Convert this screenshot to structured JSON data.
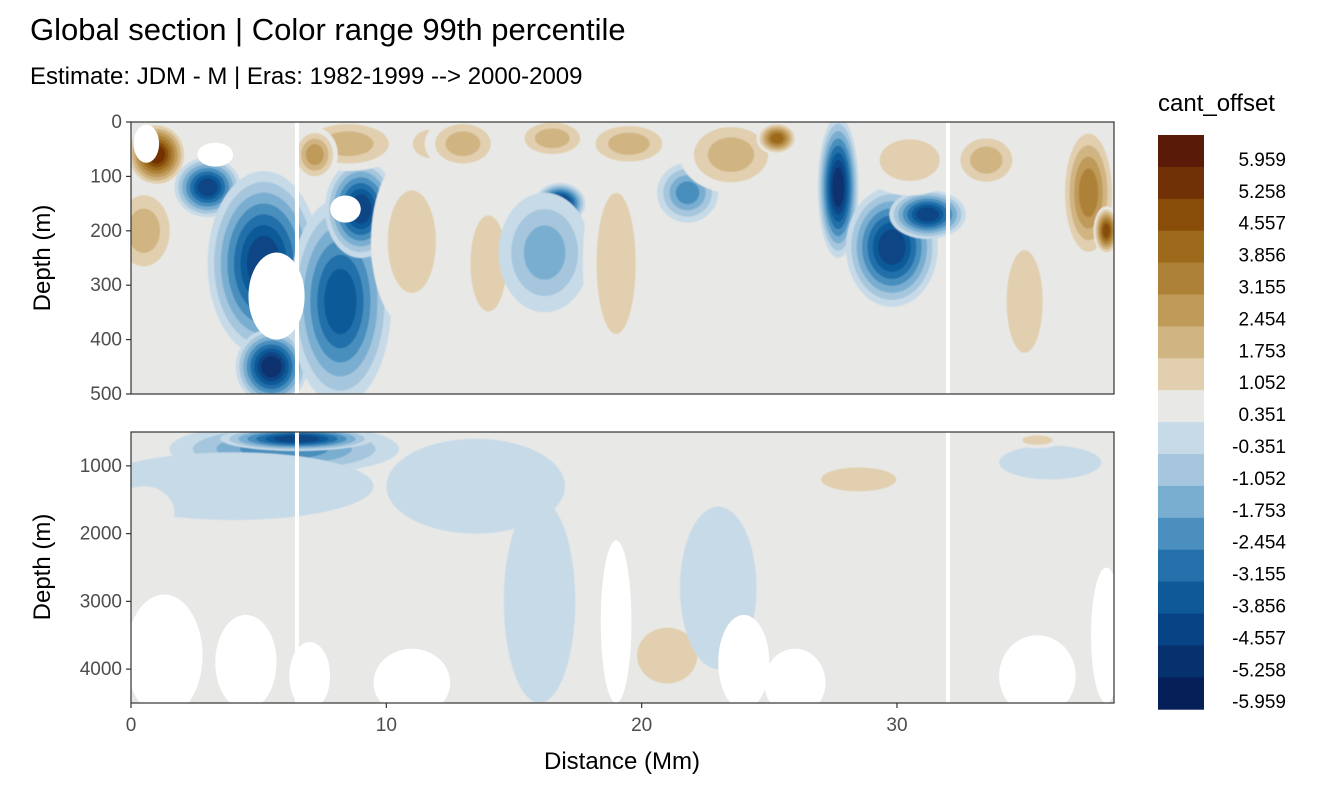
{
  "chart_data": {
    "type": "heatmap",
    "title": "Global section | Color range 99th percentile",
    "subtitle": "Estimate: JDM - M | Eras: 1982-1999 --> 2000-2009",
    "xlabel": "Distance (Mm)",
    "ylabel": "Depth (m)",
    "xlim": [
      0,
      38.5
    ],
    "x_ticks": [
      0,
      10,
      20,
      30
    ],
    "gap_lines_x": [
      6.5,
      32.0
    ],
    "panels": [
      {
        "name": "upper",
        "ylim": [
          0,
          500
        ],
        "y_ticks": [
          0,
          100,
          200,
          300,
          400,
          500
        ],
        "features": [
          {
            "x": 1.0,
            "depth": 60,
            "rx": 1.2,
            "ry": 60,
            "value": 5.3
          },
          {
            "x": 0.5,
            "depth": 200,
            "rx": 1.4,
            "ry": 90,
            "value": 2.0
          },
          {
            "x": 3.0,
            "depth": 120,
            "rx": 1.3,
            "ry": 55,
            "value": -5.2
          },
          {
            "x": 5.2,
            "depth": 260,
            "rx": 2.2,
            "ry": 170,
            "value": -4.6
          },
          {
            "x": 5.5,
            "depth": 450,
            "rx": 1.4,
            "ry": 70,
            "value": -5.8
          },
          {
            "x": 8.2,
            "depth": 330,
            "rx": 2.0,
            "ry": 190,
            "value": -4.5
          },
          {
            "x": 9.0,
            "depth": 160,
            "rx": 1.4,
            "ry": 90,
            "value": -4.9
          },
          {
            "x": 8.5,
            "depth": 40,
            "rx": 2.2,
            "ry": 50,
            "value": 2.2
          },
          {
            "x": 7.2,
            "depth": 60,
            "rx": 0.9,
            "ry": 50,
            "value": 2.6
          },
          {
            "x": 11.0,
            "depth": 220,
            "rx": 1.6,
            "ry": 160,
            "value": 1.3
          },
          {
            "x": 11.8,
            "depth": 40,
            "rx": 1.3,
            "ry": 45,
            "value": 1.4
          },
          {
            "x": 13.0,
            "depth": 40,
            "rx": 1.5,
            "ry": 50,
            "value": 1.9
          },
          {
            "x": 14.0,
            "depth": 260,
            "rx": 1.2,
            "ry": 150,
            "value": 1.1
          },
          {
            "x": 16.8,
            "depth": 150,
            "rx": 1.0,
            "ry": 38,
            "value": -5.5
          },
          {
            "x": 16.2,
            "depth": 240,
            "rx": 1.8,
            "ry": 110,
            "value": -2.3
          },
          {
            "x": 16.5,
            "depth": 30,
            "rx": 1.5,
            "ry": 40,
            "value": 2.4
          },
          {
            "x": 19.0,
            "depth": 260,
            "rx": 1.3,
            "ry": 220,
            "value": 1.1
          },
          {
            "x": 19.5,
            "depth": 40,
            "rx": 1.8,
            "ry": 45,
            "value": 2.3
          },
          {
            "x": 21.8,
            "depth": 130,
            "rx": 1.2,
            "ry": 55,
            "value": -2.7
          },
          {
            "x": 23.5,
            "depth": 60,
            "rx": 2.0,
            "ry": 70,
            "value": 2.4
          },
          {
            "x": 25.3,
            "depth": 30,
            "rx": 0.8,
            "ry": 30,
            "value": 4.4
          },
          {
            "x": 27.7,
            "depth": 120,
            "rx": 0.8,
            "ry": 130,
            "value": -5.6
          },
          {
            "x": 29.8,
            "depth": 230,
            "rx": 1.8,
            "ry": 110,
            "value": -5.2
          },
          {
            "x": 31.2,
            "depth": 170,
            "rx": 1.5,
            "ry": 45,
            "value": -4.9
          },
          {
            "x": 30.5,
            "depth": 70,
            "rx": 2.0,
            "ry": 65,
            "value": 1.7
          },
          {
            "x": 33.5,
            "depth": 70,
            "rx": 1.4,
            "ry": 55,
            "value": 2.1
          },
          {
            "x": 35.0,
            "depth": 330,
            "rx": 1.2,
            "ry": 160,
            "value": 1.2
          },
          {
            "x": 37.5,
            "depth": 130,
            "rx": 1.1,
            "ry": 130,
            "value": 3.4
          },
          {
            "x": 38.2,
            "depth": 200,
            "rx": 0.5,
            "ry": 45,
            "value": 5.2
          }
        ],
        "masks": [
          {
            "x": 5.7,
            "depth": 320,
            "rx": 1.1,
            "ry": 80
          },
          {
            "x": 0.6,
            "depth": 40,
            "rx": 0.5,
            "ry": 35
          },
          {
            "x": 3.3,
            "depth": 60,
            "rx": 0.7,
            "ry": 22
          },
          {
            "x": 8.4,
            "depth": 160,
            "rx": 0.6,
            "ry": 25
          }
        ]
      },
      {
        "name": "lower",
        "ylim": [
          500,
          4500
        ],
        "y_ticks": [
          1000,
          2000,
          3000,
          4000
        ],
        "features": [
          {
            "x": 6.0,
            "depth": 750,
            "rx": 4.5,
            "ry": 380,
            "value": -3.0
          },
          {
            "x": 6.5,
            "depth": 600,
            "rx": 3.0,
            "ry": 180,
            "value": -5.0
          },
          {
            "x": 4.0,
            "depth": 1300,
            "rx": 5.5,
            "ry": 500,
            "value": -0.8
          },
          {
            "x": 0.5,
            "depth": 1700,
            "rx": 1.2,
            "ry": 400,
            "value": 1.0
          },
          {
            "x": 13.5,
            "depth": 1300,
            "rx": 3.5,
            "ry": 700,
            "value": -0.6
          },
          {
            "x": 16.0,
            "depth": 3000,
            "rx": 1.4,
            "ry": 1500,
            "value": -0.5
          },
          {
            "x": 9.5,
            "depth": 3300,
            "rx": 3.0,
            "ry": 400,
            "value": 0.5
          },
          {
            "x": 21.0,
            "depth": 3800,
            "rx": 2.0,
            "ry": 700,
            "value": 1.3
          },
          {
            "x": 23.0,
            "depth": 2800,
            "rx": 1.5,
            "ry": 1200,
            "value": -0.5
          },
          {
            "x": 28.5,
            "depth": 1200,
            "rx": 2.5,
            "ry": 300,
            "value": 1.6
          },
          {
            "x": 27.5,
            "depth": 2600,
            "rx": 3.0,
            "ry": 900,
            "value": 0.45
          },
          {
            "x": 31.5,
            "depth": 4000,
            "rx": 3.0,
            "ry": 500,
            "value": 0.5
          },
          {
            "x": 34.0,
            "depth": 2500,
            "rx": 3.5,
            "ry": 800,
            "value": 0.4
          },
          {
            "x": 36.0,
            "depth": 950,
            "rx": 2.0,
            "ry": 250,
            "value": -0.6
          },
          {
            "x": 35.5,
            "depth": 620,
            "rx": 1.0,
            "ry": 120,
            "value": 1.2
          }
        ],
        "masks": [
          {
            "x": 1.3,
            "depth": 3800,
            "rx": 1.5,
            "ry": 900
          },
          {
            "x": 4.5,
            "depth": 3900,
            "rx": 1.2,
            "ry": 700
          },
          {
            "x": 7.0,
            "depth": 4100,
            "rx": 0.8,
            "ry": 500
          },
          {
            "x": 11.0,
            "depth": 4200,
            "rx": 1.5,
            "ry": 500
          },
          {
            "x": 19.0,
            "depth": 3300,
            "rx": 0.6,
            "ry": 1200
          },
          {
            "x": 24.0,
            "depth": 3900,
            "rx": 1.0,
            "ry": 700
          },
          {
            "x": 26.0,
            "depth": 4200,
            "rx": 1.2,
            "ry": 500
          },
          {
            "x": 35.5,
            "depth": 4100,
            "rx": 1.5,
            "ry": 600
          },
          {
            "x": 38.2,
            "depth": 3500,
            "rx": 0.6,
            "ry": 1000
          }
        ]
      }
    ],
    "legend": {
      "title": "cant_offset",
      "labels": [
        "5.959",
        "5.258",
        "4.557",
        "3.856",
        "3.155",
        "2.454",
        "1.753",
        "1.052",
        "0.351",
        "-0.351",
        "-1.052",
        "-1.753",
        "-2.454",
        "-3.155",
        "-3.856",
        "-4.557",
        "-5.258",
        "-5.959"
      ],
      "colors": [
        "#5a1a08",
        "#713106",
        "#874d09",
        "#9c6a1a",
        "#ad8238",
        "#bf9a59",
        "#d0b482",
        "#e1cfaf",
        "#e8e9e6",
        "#c7dae8",
        "#a5c6dc",
        "#7aaed1",
        "#4a8fbe",
        "#2470aa",
        "#0e5a99",
        "#084485",
        "#07316d",
        "#051f58"
      ],
      "placement": "right"
    }
  }
}
